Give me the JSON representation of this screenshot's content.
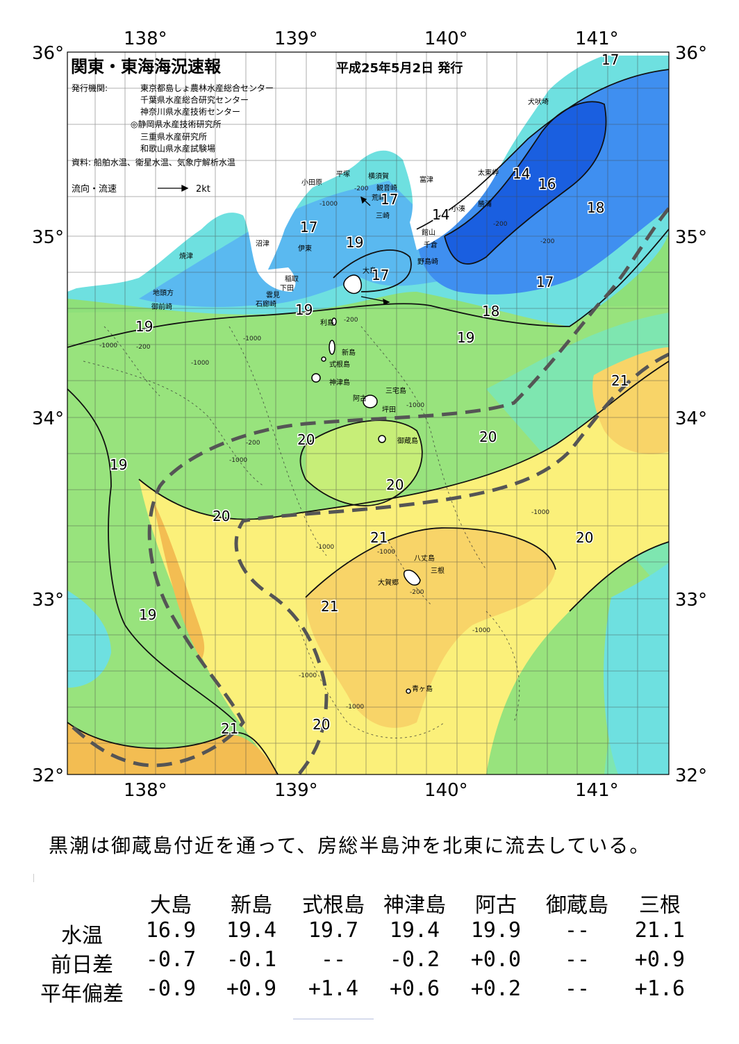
{
  "map": {
    "title": "関東・東海海況速報",
    "issue_date": "平成25年5月2日 発行",
    "issuers_label": "発行機関:",
    "issuers": [
      "東京都島しょ農林水産総合センター",
      "千葉県水産総合研究センター",
      "神奈川県水産技術センター",
      "◎静岡県水産技術研究所",
      "三重県水産研究所",
      "和歌山県水産試験場"
    ],
    "sources": "資料: 船舶水温、衛星水温、気象庁解析水温",
    "flow_legend": "流向・流速",
    "flow_unit": "2kt",
    "lon_labels": [
      "138°",
      "139°",
      "140°",
      "141°"
    ],
    "lat_labels": [
      "36°",
      "35°",
      "34°",
      "33°",
      "32°"
    ],
    "place_names": [
      "犬吠埼",
      "太東岬",
      "勝浦",
      "小湊",
      "館山",
      "千倉",
      "野島崎",
      "富津",
      "観音崎",
      "横須賀",
      "平塚",
      "小田原",
      "荒崎",
      "三崎",
      "沼津",
      "伊東",
      "焼津",
      "稲取",
      "下田",
      "雲見",
      "石廊崎",
      "地頭方",
      "御前崎",
      "大島",
      "利島",
      "新島",
      "式根島",
      "神津島",
      "三宅島",
      "阿古",
      "坪田",
      "御蔵島",
      "八丈島",
      "三根",
      "大賀郷",
      "青ヶ島"
    ],
    "isotherm_labels": [
      "17",
      "17",
      "17",
      "17",
      "14",
      "14",
      "16",
      "18",
      "19",
      "19",
      "19",
      "18",
      "19",
      "21",
      "20",
      "20",
      "20",
      "19",
      "20",
      "21",
      "20",
      "19",
      "21",
      "20"
    ],
    "depth_labels": [
      "-200",
      "-1000",
      "-200",
      "-1000",
      "-200",
      "-1000",
      "-200",
      "-1000",
      "-1000",
      "-200",
      "-1000",
      "-1000",
      "-200",
      "-1000",
      "-1000",
      "-200",
      "-1000",
      "-1000",
      "-1000"
    ],
    "colors": {
      "t14": "#1a5fe0",
      "t16": "#3f8ff0",
      "t17": "#5ab9f0",
      "t18": "#6ee0e0",
      "t19": "#7ee6b0",
      "t19b": "#8ee07a",
      "t20": "#c7ee78",
      "t21": "#fbf07a",
      "t21b": "#f8d468",
      "t22": "#f3bd52",
      "land": "#ffffff"
    }
  },
  "caption": "黒潮は御蔵島付近を通って、房総半島沖を北東に流去している。",
  "table": {
    "columns": [
      "大島",
      "新島",
      "式根島",
      "神津島",
      "阿古",
      "御蔵島",
      "三根"
    ],
    "rows": [
      {
        "label": "水温",
        "values": [
          "16.9",
          "19.4",
          "19.7",
          "19.4",
          "19.9",
          "--",
          "21.1"
        ]
      },
      {
        "label": "前日差",
        "values": [
          "-0.7",
          "-0.1",
          "--",
          "-0.2",
          "+0.0",
          "--",
          "+0.9"
        ]
      },
      {
        "label": "平年偏差",
        "values": [
          "-0.9",
          "+0.9",
          "+1.4",
          "+0.6",
          "+0.2",
          "--",
          "+1.6"
        ]
      }
    ]
  }
}
